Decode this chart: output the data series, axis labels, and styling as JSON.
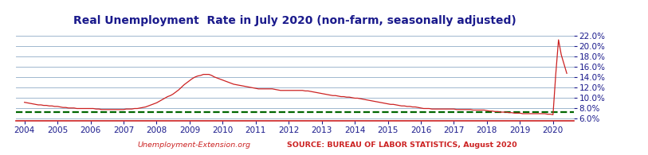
{
  "title": "Real Unemployment  Rate in July 2020 (non-farm, seasonally adjusted)",
  "title_fontsize": 10,
  "title_color": "#1a1a8c",
  "bg_color": "#ffffff",
  "plot_bg_color": "#ffffff",
  "grid_color": "#7799bb",
  "grid_alpha": 0.7,
  "xlim": [
    2003.75,
    2020.62
  ],
  "ylim": [
    5.5,
    23.5
  ],
  "yticks": [
    6.0,
    8.0,
    10.0,
    12.0,
    14.0,
    16.0,
    18.0,
    20.0,
    22.0
  ],
  "xticks": [
    2004,
    2005,
    2006,
    2007,
    2008,
    2009,
    2010,
    2011,
    2012,
    2013,
    2014,
    2015,
    2016,
    2017,
    2018,
    2019,
    2020
  ],
  "line_color": "#cc2222",
  "line_width": 0.9,
  "dashed_line_value": 7.2,
  "dashed_color": "#006600",
  "dashed_linewidth": 1.6,
  "xlabel_left": "Unemployment-Extension.org",
  "xlabel_right": "SOURCE: BUREAU OF LABOR STATISTICS, August 2020",
  "xlabel_fontsize": 6.8,
  "xlabel_color": "#cc2222",
  "tick_label_color": "#1a1a8c",
  "tick_fontsize": 7.5,
  "bottom_line_color": "#cc2222",
  "unemployment_data": {
    "years": [
      2004.0,
      2004.083,
      2004.167,
      2004.25,
      2004.333,
      2004.417,
      2004.5,
      2004.583,
      2004.667,
      2004.75,
      2004.833,
      2004.917,
      2005.0,
      2005.083,
      2005.167,
      2005.25,
      2005.333,
      2005.417,
      2005.5,
      2005.583,
      2005.667,
      2005.75,
      2005.833,
      2005.917,
      2006.0,
      2006.083,
      2006.167,
      2006.25,
      2006.333,
      2006.417,
      2006.5,
      2006.583,
      2006.667,
      2006.75,
      2006.833,
      2006.917,
      2007.0,
      2007.083,
      2007.167,
      2007.25,
      2007.333,
      2007.417,
      2007.5,
      2007.583,
      2007.667,
      2007.75,
      2007.833,
      2007.917,
      2008.0,
      2008.083,
      2008.167,
      2008.25,
      2008.333,
      2008.417,
      2008.5,
      2008.583,
      2008.667,
      2008.75,
      2008.833,
      2008.917,
      2009.0,
      2009.083,
      2009.167,
      2009.25,
      2009.333,
      2009.417,
      2009.5,
      2009.583,
      2009.667,
      2009.75,
      2009.833,
      2009.917,
      2010.0,
      2010.083,
      2010.167,
      2010.25,
      2010.333,
      2010.417,
      2010.5,
      2010.583,
      2010.667,
      2010.75,
      2010.833,
      2010.917,
      2011.0,
      2011.083,
      2011.167,
      2011.25,
      2011.333,
      2011.417,
      2011.5,
      2011.583,
      2011.667,
      2011.75,
      2011.833,
      2011.917,
      2012.0,
      2012.083,
      2012.167,
      2012.25,
      2012.333,
      2012.417,
      2012.5,
      2012.583,
      2012.667,
      2012.75,
      2012.833,
      2012.917,
      2013.0,
      2013.083,
      2013.167,
      2013.25,
      2013.333,
      2013.417,
      2013.5,
      2013.583,
      2013.667,
      2013.75,
      2013.833,
      2013.917,
      2014.0,
      2014.083,
      2014.167,
      2014.25,
      2014.333,
      2014.417,
      2014.5,
      2014.583,
      2014.667,
      2014.75,
      2014.833,
      2014.917,
      2015.0,
      2015.083,
      2015.167,
      2015.25,
      2015.333,
      2015.417,
      2015.5,
      2015.583,
      2015.667,
      2015.75,
      2015.833,
      2015.917,
      2016.0,
      2016.083,
      2016.167,
      2016.25,
      2016.333,
      2016.417,
      2016.5,
      2016.583,
      2016.667,
      2016.75,
      2016.833,
      2016.917,
      2017.0,
      2017.083,
      2017.167,
      2017.25,
      2017.333,
      2017.417,
      2017.5,
      2017.583,
      2017.667,
      2017.75,
      2017.833,
      2017.917,
      2018.0,
      2018.083,
      2018.167,
      2018.25,
      2018.333,
      2018.417,
      2018.5,
      2018.583,
      2018.667,
      2018.75,
      2018.833,
      2018.917,
      2019.0,
      2019.083,
      2019.167,
      2019.25,
      2019.333,
      2019.417,
      2019.5,
      2019.583,
      2019.667,
      2019.75,
      2019.833,
      2019.917,
      2020.0,
      2020.083,
      2020.167,
      2020.25,
      2020.417
    ],
    "values": [
      9.1,
      9.0,
      8.9,
      8.8,
      8.7,
      8.6,
      8.6,
      8.5,
      8.5,
      8.4,
      8.4,
      8.3,
      8.3,
      8.2,
      8.1,
      8.1,
      8.0,
      8.0,
      8.0,
      7.9,
      7.9,
      7.9,
      7.9,
      7.9,
      7.9,
      7.9,
      7.8,
      7.8,
      7.7,
      7.7,
      7.7,
      7.7,
      7.7,
      7.7,
      7.7,
      7.7,
      7.7,
      7.8,
      7.8,
      7.8,
      7.9,
      7.9,
      8.0,
      8.1,
      8.2,
      8.4,
      8.6,
      8.8,
      9.0,
      9.3,
      9.6,
      9.9,
      10.2,
      10.4,
      10.7,
      11.1,
      11.5,
      12.0,
      12.5,
      12.9,
      13.3,
      13.7,
      14.0,
      14.2,
      14.3,
      14.5,
      14.5,
      14.5,
      14.3,
      14.0,
      13.8,
      13.6,
      13.4,
      13.2,
      13.0,
      12.8,
      12.6,
      12.5,
      12.4,
      12.3,
      12.2,
      12.1,
      12.0,
      11.9,
      11.8,
      11.7,
      11.7,
      11.7,
      11.7,
      11.7,
      11.7,
      11.6,
      11.5,
      11.4,
      11.4,
      11.4,
      11.4,
      11.4,
      11.4,
      11.4,
      11.4,
      11.4,
      11.3,
      11.3,
      11.2,
      11.1,
      11.0,
      10.9,
      10.8,
      10.7,
      10.6,
      10.5,
      10.4,
      10.4,
      10.3,
      10.2,
      10.2,
      10.1,
      10.1,
      10.0,
      9.9,
      9.9,
      9.8,
      9.7,
      9.6,
      9.5,
      9.4,
      9.3,
      9.2,
      9.1,
      9.0,
      8.9,
      8.8,
      8.7,
      8.7,
      8.6,
      8.5,
      8.4,
      8.4,
      8.3,
      8.3,
      8.2,
      8.2,
      8.1,
      8.0,
      7.9,
      7.9,
      7.9,
      7.8,
      7.8,
      7.8,
      7.8,
      7.8,
      7.8,
      7.8,
      7.8,
      7.8,
      7.7,
      7.7,
      7.7,
      7.7,
      7.7,
      7.7,
      7.6,
      7.6,
      7.6,
      7.6,
      7.6,
      7.5,
      7.4,
      7.4,
      7.3,
      7.3,
      7.2,
      7.2,
      7.2,
      7.1,
      7.1,
      7.0,
      7.0,
      7.0,
      6.9,
      6.9,
      6.9,
      6.9,
      6.9,
      6.9,
      6.9,
      6.9,
      6.9,
      6.8,
      6.8,
      6.7,
      14.5,
      21.2,
      18.3,
      14.7
    ]
  }
}
